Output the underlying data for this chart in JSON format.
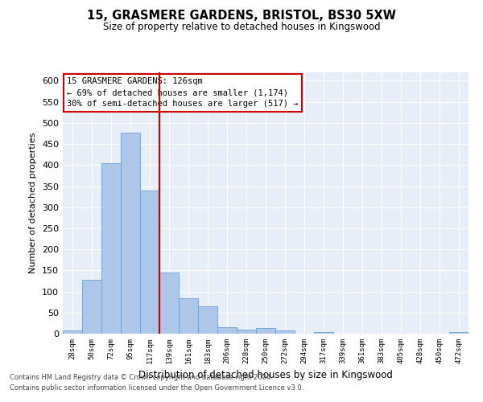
{
  "title": "15, GRASMERE GARDENS, BRISTOL, BS30 5XW",
  "subtitle": "Size of property relative to detached houses in Kingswood",
  "xlabel": "Distribution of detached houses by size in Kingswood",
  "ylabel": "Number of detached properties",
  "categories": [
    "28sqm",
    "50sqm",
    "72sqm",
    "95sqm",
    "117sqm",
    "139sqm",
    "161sqm",
    "183sqm",
    "206sqm",
    "228sqm",
    "250sqm",
    "272sqm",
    "294sqm",
    "317sqm",
    "339sqm",
    "361sqm",
    "383sqm",
    "405sqm",
    "428sqm",
    "450sqm",
    "472sqm"
  ],
  "values": [
    7,
    127,
    404,
    476,
    340,
    145,
    83,
    65,
    16,
    10,
    13,
    7,
    0,
    4,
    0,
    0,
    0,
    0,
    0,
    0,
    4
  ],
  "bar_color": "#aec6e8",
  "bar_edge_color": "#6a9fd8",
  "vline_x_index": 4.5,
  "vline_color": "#cc0000",
  "annotation_line1": "15 GRASMERE GARDENS: 126sqm",
  "annotation_line2": "← 69% of detached houses are smaller (1,174)",
  "annotation_line3": "30% of semi-detached houses are larger (517) →",
  "annotation_box_color": "#ffffff",
  "annotation_box_edge": "#cc0000",
  "ylim": [
    0,
    620
  ],
  "yticks": [
    0,
    50,
    100,
    150,
    200,
    250,
    300,
    350,
    400,
    450,
    500,
    550,
    600
  ],
  "bg_color": "#e8eef8",
  "grid_color": "#ffffff",
  "footer1": "Contains HM Land Registry data © Crown copyright and database right 2024.",
  "footer2": "Contains public sector information licensed under the Open Government Licence v3.0."
}
